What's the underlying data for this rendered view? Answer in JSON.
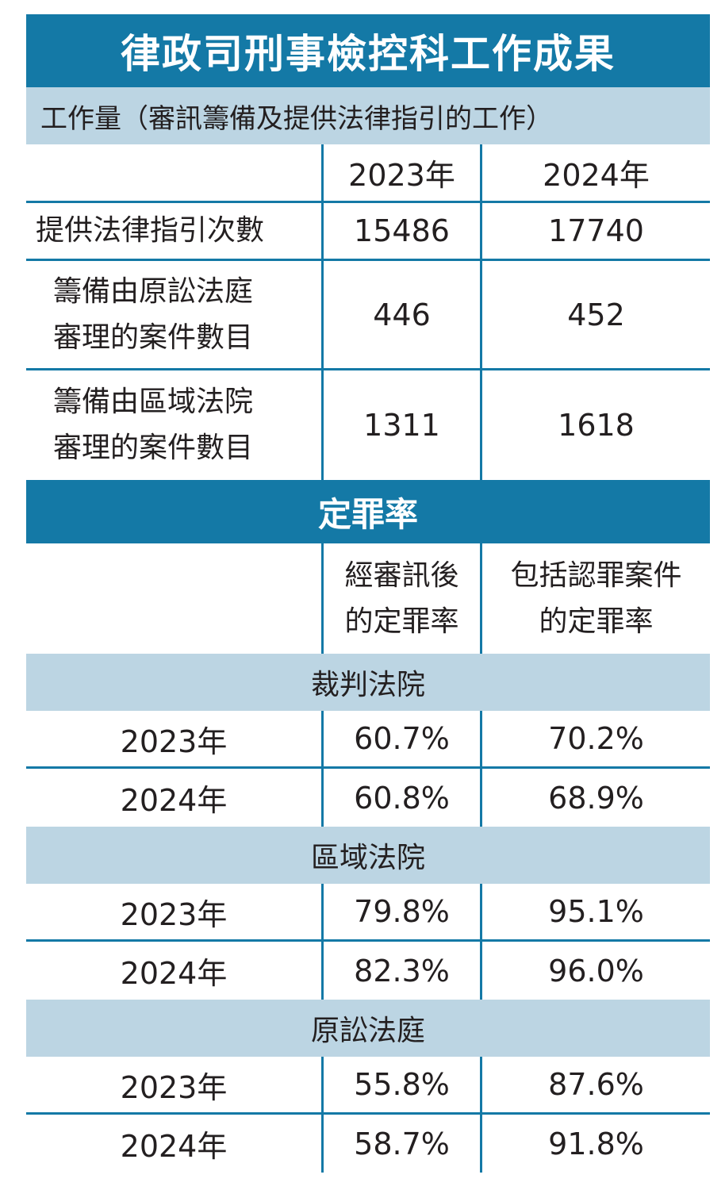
{
  "title": "律政司刑事檢控科工作成果",
  "workload": {
    "heading": "工作量（審訊籌備及提供法律指引的工作）",
    "col_2023": "2023年",
    "col_2024": "2024年",
    "rows": [
      {
        "label_line1": "提供法律指引次數",
        "label_line2": "",
        "v2023": "15486",
        "v2024": "17740"
      },
      {
        "label_line1": "籌備由原訟法庭",
        "label_line2": "審理的案件數目",
        "v2023": "446",
        "v2024": "452"
      },
      {
        "label_line1": "籌備由區域法院",
        "label_line2": "審理的案件數目",
        "v2023": "1311",
        "v2024": "1618"
      }
    ]
  },
  "conviction": {
    "heading": "定罪率",
    "col_after_trial_line1": "經審訊後",
    "col_after_trial_line2": "的定罪率",
    "col_incl_plea_line1": "包括認罪案件",
    "col_incl_plea_line2": "的定罪率",
    "groups": [
      {
        "name": "裁判法院",
        "rows": [
          {
            "year": "2023年",
            "after_trial": "60.7%",
            "incl_plea": "70.2%"
          },
          {
            "year": "2024年",
            "after_trial": "60.8%",
            "incl_plea": "68.9%"
          }
        ]
      },
      {
        "name": "區域法院",
        "rows": [
          {
            "year": "2023年",
            "after_trial": "79.8%",
            "incl_plea": "95.1%"
          },
          {
            "year": "2024年",
            "after_trial": "82.3%",
            "incl_plea": "96.0%"
          }
        ]
      },
      {
        "name": "原訟法庭",
        "rows": [
          {
            "year": "2023年",
            "after_trial": "55.8%",
            "incl_plea": "87.6%"
          },
          {
            "year": "2024年",
            "after_trial": "58.7%",
            "incl_plea": "91.8%"
          }
        ]
      }
    ]
  },
  "colors": {
    "accent_blue": "#1479a6",
    "light_blue": "#bcd5e3",
    "text": "#231f20"
  }
}
